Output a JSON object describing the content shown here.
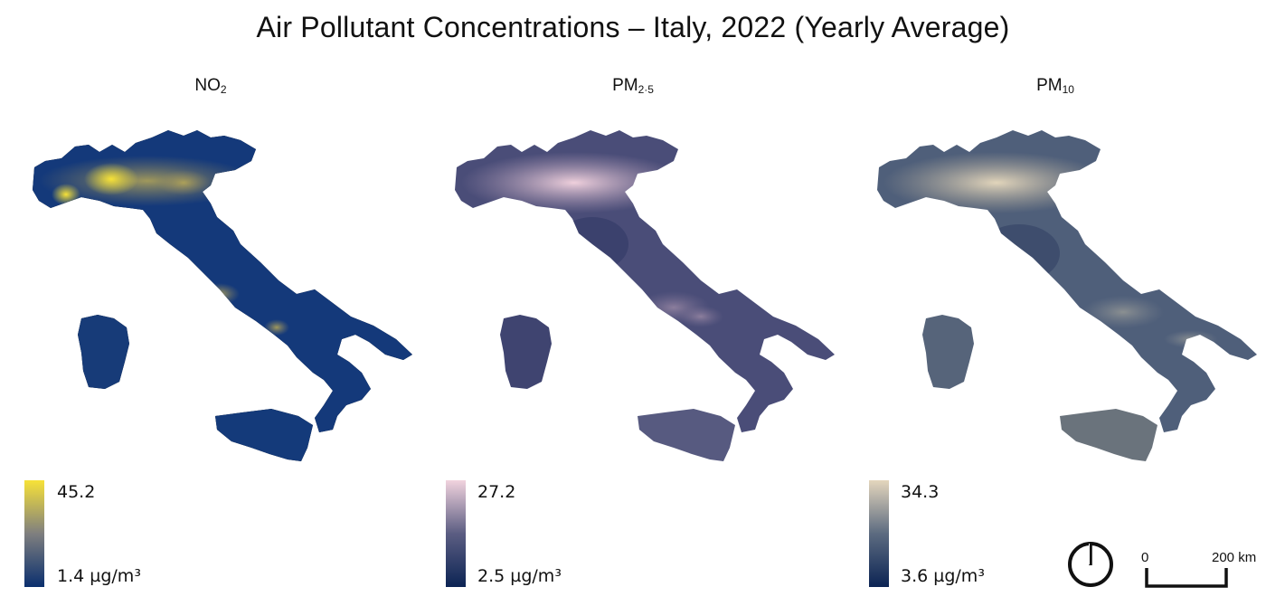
{
  "title": "Air Pollutant Concentrations – Italy, 2022 (Yearly Average)",
  "panels": [
    {
      "pollutant_base": "NO",
      "pollutant_sub": "2",
      "legend_max": "45.2",
      "legend_min": "1.4 µg/m³",
      "ramp": [
        "#f7e238",
        "#7f7f7f",
        "#0a2f6e"
      ]
    },
    {
      "pollutant_base": "PM",
      "pollutant_sub": "2·5",
      "legend_max": "27.2",
      "legend_min": "2.5 µg/m³",
      "ramp": [
        "#f1d3de",
        "#5b5d82",
        "#0c2454"
      ]
    },
    {
      "pollutant_base": "PM",
      "pollutant_sub": "10",
      "legend_max": "34.3",
      "legend_min": "3.6 µg/m³",
      "ramp": [
        "#e4d6bd",
        "#5c6b80",
        "#0c2454"
      ]
    }
  ],
  "scale_bar": {
    "start_label": "0",
    "end_label": "200 km"
  },
  "north_arrow_icon": "north-arrow-icon"
}
